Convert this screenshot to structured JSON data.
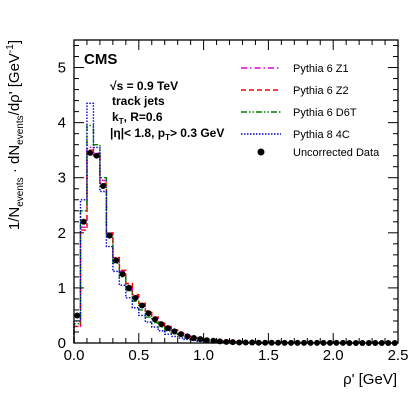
{
  "chart_data": {
    "type": "line",
    "experiment": "CMS",
    "annotations": {
      "sqrt_s": "√s = 0.9 TeV",
      "jets": "track jets",
      "algo": "kT, R=0.6",
      "cuts": "|η|< 1.8, pT> 0.3 GeV"
    },
    "xlabel": "ρ' [GeV]",
    "ylabel": "1/Nevents · dNevents/dρ' [GeV-1]",
    "xlim": [
      0,
      2.5
    ],
    "ylim": [
      0,
      5.5
    ],
    "xticks": [
      "0.0",
      "0.5",
      "1.0",
      "1.5",
      "2.0",
      "2.5"
    ],
    "yticks": [
      "0",
      "1",
      "2",
      "3",
      "4",
      "5"
    ],
    "legend_position": "top-right",
    "data": {
      "name": "Uncorrected Data",
      "x": [
        0.025,
        0.075,
        0.125,
        0.175,
        0.225,
        0.275,
        0.325,
        0.375,
        0.425,
        0.475,
        0.525,
        0.575,
        0.625,
        0.675,
        0.725,
        0.775,
        0.825,
        0.875,
        0.925,
        0.975,
        1.025,
        1.075,
        1.125,
        1.175,
        1.225,
        1.275,
        1.325,
        1.375,
        1.425,
        1.475,
        1.525,
        1.575,
        1.625,
        1.675,
        1.725,
        1.775,
        1.825,
        1.875,
        1.925,
        1.975,
        2.025,
        2.075,
        2.125,
        2.175,
        2.225,
        2.275,
        2.325,
        2.375,
        2.425,
        2.475
      ],
      "y": [
        0.5,
        2.2,
        3.45,
        3.4,
        2.85,
        1.95,
        1.5,
        1.25,
        1.0,
        0.82,
        0.68,
        0.54,
        0.43,
        0.34,
        0.27,
        0.21,
        0.16,
        0.12,
        0.09,
        0.07,
        0.05,
        0.04,
        0.03,
        0.02,
        0.015,
        0.01,
        0.01,
        0.01,
        0.005,
        0.005,
        0.005,
        0.005,
        0.003,
        0.003,
        0.003,
        0.002,
        0.002,
        0.002,
        0.002,
        0.002,
        0.002,
        0.002,
        0.001,
        0.001,
        0.001,
        0.001,
        0.001,
        0.001,
        0.001,
        0.001
      ]
    },
    "series": [
      {
        "name": "Pythia 6 Z1",
        "color": "#e000e0",
        "dash": "dashdot",
        "x": [
          0,
          0.05,
          0.1,
          0.15,
          0.2,
          0.25,
          0.3,
          0.35,
          0.4,
          0.45,
          0.5,
          0.55,
          0.6,
          0.65,
          0.7,
          0.75,
          0.8,
          0.85,
          0.9,
          0.95,
          1.0,
          1.05,
          1.1,
          1.2,
          1.3,
          1.4,
          1.5,
          1.7,
          2.0,
          2.5
        ],
        "y": [
          0.3,
          2.1,
          3.55,
          3.45,
          2.95,
          2.0,
          1.55,
          1.3,
          1.05,
          0.85,
          0.7,
          0.56,
          0.45,
          0.36,
          0.28,
          0.22,
          0.17,
          0.13,
          0.1,
          0.08,
          0.06,
          0.045,
          0.035,
          0.02,
          0.012,
          0.008,
          0.005,
          0.003,
          0.002,
          0.001
        ]
      },
      {
        "name": "Pythia 6 Z2",
        "color": "#ff0000",
        "dash": "dash",
        "x": [
          0,
          0.05,
          0.1,
          0.15,
          0.2,
          0.25,
          0.3,
          0.35,
          0.4,
          0.45,
          0.5,
          0.55,
          0.6,
          0.65,
          0.7,
          0.75,
          0.8,
          0.85,
          0.9,
          0.95,
          1.0,
          1.05,
          1.1,
          1.2,
          1.3,
          1.4,
          1.5,
          1.7,
          2.0,
          2.5
        ],
        "y": [
          0.3,
          2.05,
          3.5,
          3.4,
          2.9,
          2.0,
          1.55,
          1.32,
          1.08,
          0.88,
          0.72,
          0.58,
          0.47,
          0.38,
          0.3,
          0.24,
          0.19,
          0.15,
          0.11,
          0.09,
          0.07,
          0.05,
          0.04,
          0.025,
          0.015,
          0.01,
          0.006,
          0.003,
          0.002,
          0.001
        ]
      },
      {
        "name": "Pythia 6 D6T",
        "color": "#008000",
        "dash": "dashdotdot",
        "x": [
          0,
          0.05,
          0.1,
          0.15,
          0.2,
          0.25,
          0.3,
          0.35,
          0.4,
          0.45,
          0.5,
          0.55,
          0.6,
          0.65,
          0.7,
          0.75,
          0.8,
          0.85,
          0.9,
          0.95,
          1.0,
          1.05,
          1.1,
          1.2,
          1.3,
          1.4,
          1.5,
          1.7,
          2.0,
          2.5
        ],
        "y": [
          0.35,
          2.4,
          3.95,
          3.6,
          3.0,
          1.95,
          1.45,
          1.2,
          0.95,
          0.76,
          0.6,
          0.47,
          0.37,
          0.29,
          0.22,
          0.17,
          0.13,
          0.1,
          0.07,
          0.05,
          0.04,
          0.03,
          0.022,
          0.012,
          0.007,
          0.005,
          0.003,
          0.002,
          0.001,
          0.001
        ]
      },
      {
        "name": "Pythia 8 4C",
        "color": "#0000cc",
        "dash": "dot",
        "x": [
          0,
          0.05,
          0.1,
          0.15,
          0.2,
          0.25,
          0.3,
          0.35,
          0.4,
          0.45,
          0.5,
          0.55,
          0.6,
          0.65,
          0.7,
          0.75,
          0.8,
          0.85,
          0.9,
          0.95,
          1.0,
          1.05,
          1.1,
          1.2,
          1.3,
          1.4,
          1.5,
          1.7,
          2.0,
          2.5
        ],
        "y": [
          0.4,
          2.6,
          4.35,
          3.55,
          2.75,
          1.75,
          1.3,
          1.05,
          0.82,
          0.64,
          0.5,
          0.38,
          0.29,
          0.22,
          0.16,
          0.12,
          0.09,
          0.065,
          0.047,
          0.034,
          0.025,
          0.018,
          0.013,
          0.007,
          0.004,
          0.002,
          0.001,
          0.001,
          0.001,
          0.001
        ]
      }
    ]
  }
}
